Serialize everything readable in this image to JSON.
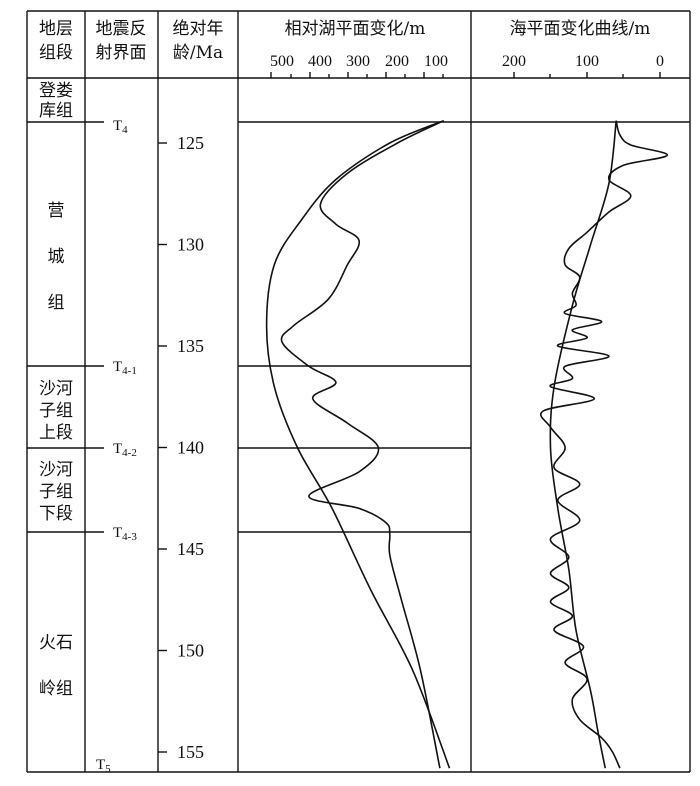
{
  "headers": {
    "strata": "地层组段",
    "seismic": "地震反射界面",
    "age": "绝对年龄/Ma",
    "lake": "相对湖平面变化/m",
    "sea": "海平面变化曲线/m"
  },
  "lake_axis_ticks": [
    "500",
    "400",
    "300",
    "200",
    "100"
  ],
  "sea_axis_ticks": [
    "200",
    "100",
    "0"
  ],
  "formations": [
    {
      "lines": [
        "登娄",
        "库组"
      ]
    },
    {
      "lines": [
        "营",
        "城",
        "组"
      ]
    },
    {
      "lines": [
        "沙河",
        "子组",
        "上段"
      ]
    },
    {
      "lines": [
        "沙河",
        "子组",
        "下段"
      ]
    },
    {
      "lines": [
        "火石",
        "岭组"
      ]
    }
  ],
  "seismic_surfaces": [
    {
      "base": "T",
      "sub": "4"
    },
    {
      "base": "T",
      "sub": "4-1"
    },
    {
      "base": "T",
      "sub": "4-2"
    },
    {
      "base": "T",
      "sub": "4-3"
    },
    {
      "base": "T",
      "sub": "5"
    }
  ],
  "age_ticks": [
    "125",
    "130",
    "135",
    "140",
    "145",
    "150",
    "155"
  ],
  "chart_data": [
    {
      "type": "line",
      "title": "相对湖平面变化/m",
      "x_axis": "relative lake level (m), decreasing to the right",
      "xlim": [
        550,
        60
      ],
      "y_axis": "absolute age (Ma)",
      "ylim": [
        123.9,
        155.8
      ],
      "boundaries_ma": [
        123.9,
        136.0,
        140.0,
        144.2
      ],
      "series": [
        {
          "name": "",
          "x": [
            80,
            220,
            360,
            450,
            520,
            540,
            520,
            460,
            370,
            270,
            160,
            65
          ],
          "y": [
            123.9,
            125.0,
            126.8,
            128.8,
            131.0,
            134.0,
            137.0,
            140.0,
            143.0,
            147.0,
            151.0,
            155.8
          ]
        },
        {
          "name": "",
          "x": [
            80,
            200,
            330,
            400,
            360,
            300,
            330,
            380,
            470,
            500,
            430,
            360,
            420,
            330,
            250,
            300,
            430,
            300,
            230,
            220,
            220,
            190,
            140,
            90
          ],
          "y": [
            123.9,
            125.0,
            126.5,
            128.0,
            129.0,
            129.8,
            131.0,
            132.7,
            134.0,
            134.8,
            136.0,
            136.8,
            137.6,
            138.8,
            140.0,
            141.2,
            142.4,
            143.0,
            143.7,
            144.3,
            145.3,
            147.5,
            151.0,
            155.8
          ]
        }
      ]
    },
    {
      "type": "line",
      "title": "海平面变化曲线/m",
      "x_axis": "sea level change (m), decreasing to the right",
      "xlim": [
        250,
        -20
      ],
      "y_axis": "absolute age (Ma)",
      "ylim": [
        123.9,
        155.8
      ],
      "series": [
        {
          "name": "",
          "x": [
            60,
            70,
            95,
            120,
            145,
            150,
            140,
            125,
            115,
            95,
            85,
            75
          ],
          "y": [
            123.9,
            127.0,
            130.0,
            133.0,
            137.0,
            140.0,
            143.0,
            146.0,
            149.0,
            152.0,
            154.0,
            155.8
          ]
        },
        {
          "name": "",
          "x": [
            60,
            55,
            40,
            -10,
            50,
            70,
            40,
            70,
            100,
            125,
            130,
            110,
            120,
            115,
            130,
            80,
            120,
            100,
            140,
            70,
            130,
            120,
            150,
            90,
            160,
            150,
            130,
            145,
            110,
            140,
            110,
            150,
            125,
            150,
            125,
            150,
            120,
            145,
            105,
            130,
            100,
            120,
            110,
            80,
            65,
            55
          ],
          "y": [
            123.9,
            124.6,
            125.1,
            125.6,
            126.1,
            126.8,
            127.6,
            128.4,
            129.4,
            130.2,
            131.0,
            131.6,
            132.4,
            133.0,
            133.4,
            133.8,
            134.2,
            134.6,
            135.0,
            135.5,
            136.0,
            136.6,
            137.0,
            137.6,
            138.2,
            139.0,
            140.0,
            141.0,
            141.8,
            142.6,
            143.6,
            144.5,
            145.4,
            146.2,
            146.9,
            147.6,
            148.3,
            149.0,
            149.8,
            150.6,
            151.4,
            152.4,
            153.4,
            154.3,
            155.0,
            155.8
          ]
        }
      ]
    }
  ]
}
